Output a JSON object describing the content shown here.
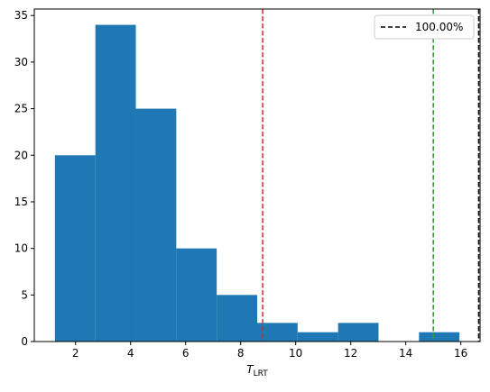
{
  "chart_data": {
    "type": "histogram",
    "bins": [
      {
        "x0": 1.25,
        "x1": 2.72,
        "count": 20
      },
      {
        "x0": 2.72,
        "x1": 4.19,
        "count": 34
      },
      {
        "x0": 4.19,
        "x1": 5.66,
        "count": 25
      },
      {
        "x0": 5.66,
        "x1": 7.13,
        "count": 10
      },
      {
        "x0": 7.13,
        "x1": 8.6,
        "count": 5
      },
      {
        "x0": 8.6,
        "x1": 10.07,
        "count": 2
      },
      {
        "x0": 10.07,
        "x1": 11.54,
        "count": 1
      },
      {
        "x0": 11.54,
        "x1": 13.01,
        "count": 2
      },
      {
        "x0": 13.01,
        "x1": 14.48,
        "count": 0
      },
      {
        "x0": 14.48,
        "x1": 15.95,
        "count": 1
      }
    ],
    "bar_color": "#1f77b4",
    "xlabel": {
      "main": "T",
      "sub": "LRT"
    },
    "xlim": [
      0.5,
      16.7
    ],
    "ylim": [
      0,
      35.7
    ],
    "xticks": [
      2,
      4,
      6,
      8,
      10,
      12,
      14,
      16
    ],
    "yticks": [
      0,
      5,
      10,
      15,
      20,
      25,
      30,
      35
    ],
    "vlines": [
      {
        "x": 8.8,
        "color": "#d62728",
        "style": "dashed"
      },
      {
        "x": 15.0,
        "color": "#2ca02c",
        "style": "dashed"
      },
      {
        "x": 16.65,
        "color": "#000000",
        "style": "dashed",
        "legend": "100.00%"
      }
    ],
    "legend": {
      "position": "top-right",
      "entries": [
        {
          "label": "100.00%",
          "color": "#000000",
          "style": "dashed"
        }
      ]
    },
    "grid": false
  }
}
